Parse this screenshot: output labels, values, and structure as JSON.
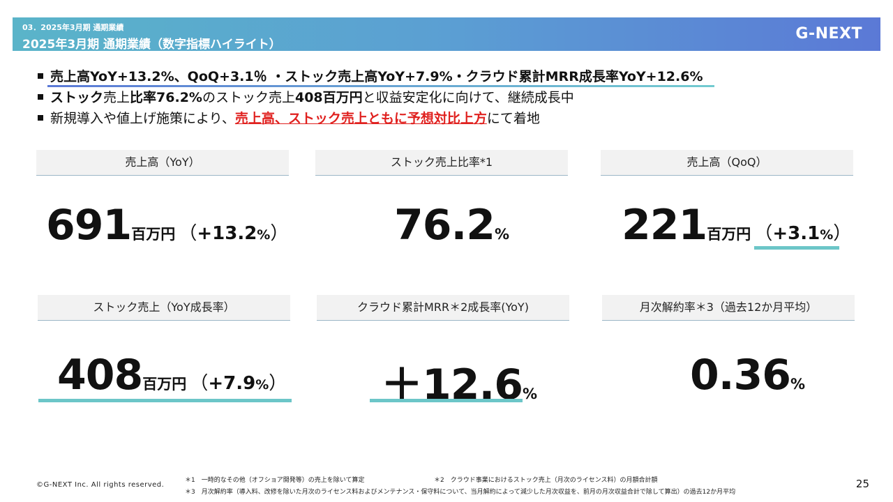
{
  "header": {
    "section": "03．2025年3月期 通期業績",
    "title": "2025年3月期 通期業績（数字指標ハイライト）",
    "logo": "G-NEXT"
  },
  "bullets": {
    "b1": "売上高YoY+13.2%、QoQ+3.1％ ・ストック売上高YoY+7.9%・クラウド累計MRR成長率YoY+12.6%",
    "b2": {
      "p1": "ストック",
      "p2": "売上",
      "p3": "比率76.2%",
      "p4": "のストック売上",
      "p5": "408百万円",
      "p6": "と収益安定化に向けて、継続成長中"
    },
    "b3": {
      "p1": "新規導入や値上げ施策により、",
      "p2": "売上高、ストック売上ともに予想対比上方",
      "p3": "にて着地"
    }
  },
  "kpis": {
    "sales_yoy": {
      "label": "売上高（YoY）",
      "value": "691",
      "unit": "百万円",
      "open": "（",
      "change": "+13.2",
      "pct": "%",
      "close": "）"
    },
    "stock_ratio": {
      "label": "ストック売上比率*1",
      "value": "76.2",
      "unit": "%"
    },
    "sales_qoq": {
      "label": "売上高（QoQ）",
      "value": "221",
      "unit": "百万円",
      "open": "（",
      "change": "+3.1",
      "pct": "%",
      "close": "）"
    },
    "stock_sales": {
      "label": "ストック売上（YoY成長率）",
      "value": "408",
      "unit": "百万円",
      "open": "（",
      "change": "+7.9",
      "pct": "%",
      "close": "）"
    },
    "cloud_mrr": {
      "label": "クラウド累計MRR＊2成長率(YoY)",
      "value": "＋12.6",
      "unit": "%"
    },
    "churn": {
      "label": "月次解約率＊3（過去12か月平均）",
      "value": "0.36",
      "unit": "%"
    }
  },
  "footer": {
    "copyright": "©G-NEXT Inc. All rights reserved.",
    "note1": "＊1　一時的なその他（オフショア開発等）の売上を除いて算定",
    "note2": "＊2　クラウド事業におけるストック売上（月次のライセンス料）の月額合計額",
    "note3": "＊3　月次解約率（導入料、改修を除いた月次のライセンス料およびメンテナンス・保守料について、当月解約によって減少した月次収益を、前月の月次収益合計で除して算出）の過去12か月平均",
    "page": "25"
  },
  "colors": {
    "accent_teal": "#6cc6c8",
    "highlight_red": "#e0211f",
    "band_start": "#5ab4c9",
    "band_end": "#5b79d6"
  }
}
